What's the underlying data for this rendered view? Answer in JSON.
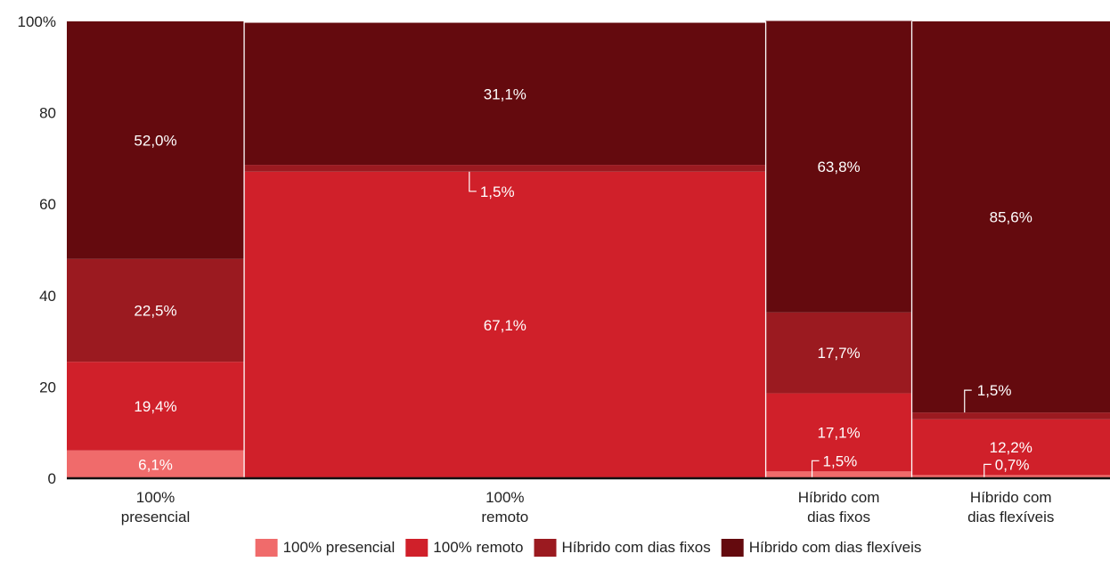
{
  "chart_data": {
    "type": "bar",
    "subtype": "mekko-stacked-100",
    "title": "",
    "xlabel": "",
    "ylabel": "",
    "ylim": [
      0,
      100
    ],
    "yticks": [
      "0",
      "20",
      "40",
      "60",
      "80",
      "100%"
    ],
    "grid": false,
    "legend_position": "bottom",
    "categories": [
      {
        "label_lines": [
          "100%",
          "presencial"
        ],
        "width_share": 0.17
      },
      {
        "label_lines": [
          "100%",
          "remoto"
        ],
        "width_share": 0.5
      },
      {
        "label_lines": [
          "Híbrido com",
          "dias fixos"
        ],
        "width_share": 0.14
      },
      {
        "label_lines": [
          "Híbrido com",
          "dias flexíveis"
        ],
        "width_share": 0.19
      }
    ],
    "series": [
      {
        "name": "100% presencial",
        "color": "#f06b6b",
        "values": [
          6.1,
          0.0,
          1.5,
          0.7
        ],
        "labels": [
          "6,1%",
          "",
          "1,5%",
          "0,7%"
        ]
      },
      {
        "name": "100% remoto",
        "color": "#d0202a",
        "values": [
          19.4,
          67.1,
          17.1,
          12.2
        ],
        "labels": [
          "19,4%",
          "67,1%",
          "17,1%",
          "12,2%"
        ]
      },
      {
        "name": "Híbrido com dias fixos",
        "color": "#9b1a20",
        "values": [
          22.5,
          1.5,
          17.7,
          1.5
        ],
        "labels": [
          "22,5%",
          "1,5%",
          "17,7%",
          "1,5%"
        ]
      },
      {
        "name": "Híbrido com dias flexíveis",
        "color": "#640a0e",
        "values": [
          52.0,
          31.1,
          63.8,
          85.6
        ],
        "labels": [
          "52,0%",
          "31,1%",
          "63,8%",
          "85,6%"
        ]
      }
    ]
  }
}
